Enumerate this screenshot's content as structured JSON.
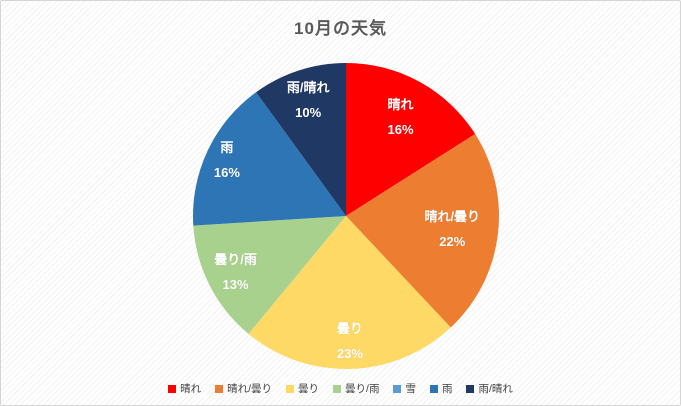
{
  "chart_data": {
    "type": "pie",
    "title": "10月の天気",
    "legend_position": "bottom",
    "direction": "clockwise",
    "start_angle_deg": 0,
    "units": "percent",
    "slices": [
      {
        "label": "晴れ",
        "value": 16,
        "percent_label": "16%",
        "color": "#FF0000"
      },
      {
        "label": "晴れ/曇り",
        "value": 22,
        "percent_label": "22%",
        "color": "#ED7D31"
      },
      {
        "label": "曇り",
        "value": 23,
        "percent_label": "23%",
        "color": "#FFD966"
      },
      {
        "label": "曇り/雨",
        "value": 13,
        "percent_label": "13%",
        "color": "#A9D18E"
      },
      {
        "label": "雪",
        "value": 0,
        "percent_label": null,
        "color": "#5B9BD5"
      },
      {
        "label": "雨",
        "value": 16,
        "percent_label": "16%",
        "color": "#2E75B6"
      },
      {
        "label": "雨/晴れ",
        "value": 10,
        "percent_label": "10%",
        "color": "#203864"
      }
    ],
    "colors": {
      "title_text": "#595959",
      "legend_text": "#404040",
      "data_label_text": "#ffffff",
      "frame_border": "#d5d5d5"
    }
  }
}
